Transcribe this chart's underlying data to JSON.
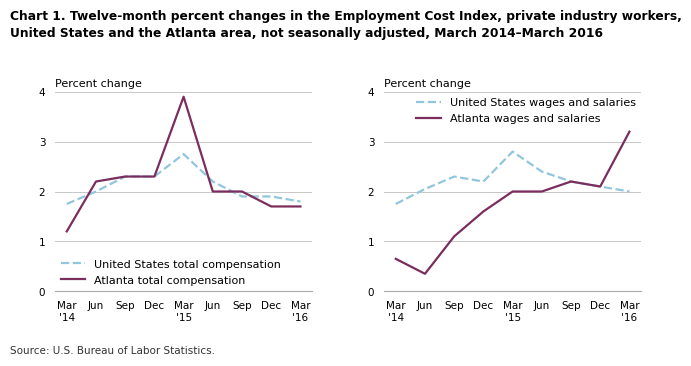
{
  "title_line1": "Chart 1. Twelve-month percent changes in the Employment Cost Index, private industry workers,",
  "title_line2": "United States and the Atlanta area, not seasonally adjusted, March 2014–March 2016",
  "source": "Source: U.S. Bureau of Labor Statistics.",
  "x_labels": [
    "Mar\n'14",
    "Jun",
    "Sep",
    "Dec",
    "Mar\n'15",
    "Jun",
    "Sep",
    "Dec",
    "Mar\n'16"
  ],
  "ylabel": "Percent change",
  "ylim": [
    0.0,
    4.0
  ],
  "yticks": [
    0.0,
    1.0,
    2.0,
    3.0,
    4.0
  ],
  "left_us_comp": [
    1.75,
    2.0,
    2.3,
    2.3,
    2.75,
    2.2,
    1.9,
    1.9,
    1.8
  ],
  "left_atlanta_comp": [
    1.2,
    2.2,
    2.3,
    2.3,
    3.9,
    2.0,
    2.0,
    1.7,
    1.7
  ],
  "right_us_wages": [
    1.75,
    2.05,
    2.3,
    2.2,
    2.8,
    2.4,
    2.2,
    2.1,
    2.0
  ],
  "right_atlanta_wages": [
    0.65,
    0.35,
    1.1,
    1.6,
    2.0,
    2.0,
    2.2,
    2.1,
    3.2
  ],
  "us_color": "#92c5de",
  "atlanta_color": "#7b2d5e",
  "us_linestyle": "--",
  "atlanta_linestyle": "-",
  "linewidth": 1.6,
  "left_legend": [
    "United States total compensation",
    "Atlanta total compensation"
  ],
  "right_legend": [
    "United States wages and salaries",
    "Atlanta wages and salaries"
  ],
  "plot_bg": "#ffffff",
  "fig_bg": "#ffffff",
  "grid_color": "#c8c8c8",
  "title_fontsize": 8.8,
  "axis_fontsize": 8.0,
  "legend_fontsize": 8.0,
  "tick_fontsize": 7.5,
  "source_fontsize": 7.5
}
